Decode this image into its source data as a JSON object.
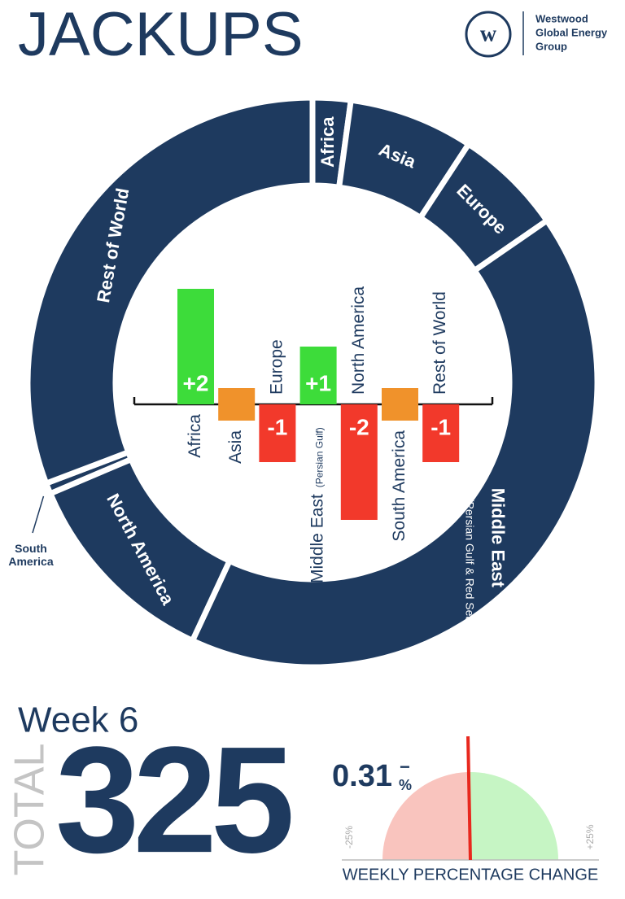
{
  "header": {
    "title": "JACKUPS",
    "logo_text": [
      "Westwood",
      "Global Energy",
      "Group"
    ]
  },
  "chart_data": [
    {
      "type": "donut",
      "categories": [
        "Africa",
        "Asia",
        "Europe",
        "Middle East",
        "North America",
        "South America",
        "Rest of World"
      ],
      "values": [
        7,
        23,
        20,
        135,
        38,
        2,
        100
      ],
      "color": "#1e3a5f",
      "note": "(Persian Gulf & Red Sea)"
    },
    {
      "type": "bar",
      "categories": [
        "Africa",
        "Asia",
        "Europe",
        "Middle East",
        "North America",
        "South America",
        "Rest of World"
      ],
      "values": [
        2,
        0,
        -1,
        1,
        -2,
        0,
        -1
      ],
      "value_labels": [
        "+2",
        null,
        "-1",
        "+1",
        "-2",
        null,
        "-1"
      ],
      "note": "(Persian Gulf)",
      "colors": {
        "positive": "#3ddc3a",
        "zero": "#f0922b",
        "negative": "#f2392b"
      }
    },
    {
      "type": "gauge",
      "value": -0.31,
      "value_label": "0.31",
      "sign_label": "−",
      "unit_label": "%",
      "xlim": [
        -25,
        25
      ],
      "xticks": [
        {
          "value": -25,
          "label": "-25%"
        },
        {
          "value": 25,
          "label": "+25%"
        }
      ],
      "title": "WEEKLY PERCENTAGE CHANGE",
      "colors": {
        "negative": "#f9c4be",
        "positive": "#c6f5c4",
        "needle": "#e8281e"
      }
    }
  ],
  "footer": {
    "week": "Week 6",
    "total_label": "TOTAL",
    "total": "325"
  }
}
